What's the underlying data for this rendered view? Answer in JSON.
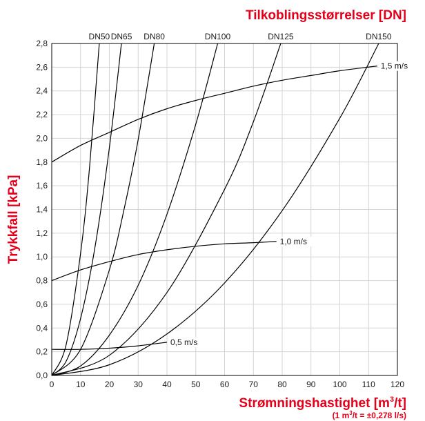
{
  "chart_data": {
    "type": "line",
    "title": "Tilkoblingsstørrelser [DN]",
    "xlabel_main": "Strømningshastighet [m",
    "xlabel_sup": "3",
    "xlabel_end": "/t]",
    "xnote_a": "(1 m",
    "xnote_sup": "3",
    "xnote_b": "/t = ±0,278 l/s)",
    "ylabel": "Trykkfall [kPa]",
    "xlim": [
      0,
      120
    ],
    "ylim": [
      0,
      2.8
    ],
    "xticks": [
      "0",
      "10",
      "20",
      "30",
      "40",
      "50",
      "60",
      "70",
      "80",
      "90",
      "100",
      "110",
      "120"
    ],
    "yticks": [
      "0,0",
      "0,2",
      "0,4",
      "0,6",
      "0,8",
      "1,0",
      "1,2",
      "1,4",
      "1,6",
      "1,8",
      "2,0",
      "2,2",
      "2,4",
      "2,6",
      "2,8"
    ],
    "grid": true,
    "dn_series": [
      {
        "name": "DN50",
        "x": [
          0,
          5,
          10,
          13.1,
          16.5
        ],
        "y": [
          0,
          0.26,
          1.03,
          1.75,
          2.8
        ]
      },
      {
        "name": "DN65",
        "x": [
          0,
          5,
          10,
          15,
          20,
          24.2
        ],
        "y": [
          0,
          0.12,
          0.48,
          1.08,
          1.92,
          2.8
        ]
      },
      {
        "name": "DN80",
        "x": [
          0,
          10,
          20,
          25,
          30,
          35.6
        ],
        "y": [
          0,
          0.22,
          0.89,
          1.39,
          1.99,
          2.8
        ]
      },
      {
        "name": "DN100",
        "x": [
          0,
          10,
          20,
          30,
          40,
          50,
          57.6
        ],
        "y": [
          0,
          0.08,
          0.34,
          0.76,
          1.36,
          2.12,
          2.8
        ]
      },
      {
        "name": "DN125",
        "x": [
          0,
          20,
          40,
          60,
          70,
          79.5
        ],
        "y": [
          0,
          0.17,
          0.7,
          1.57,
          2.14,
          2.8
        ]
      },
      {
        "name": "DN150",
        "x": [
          0,
          20,
          40,
          60,
          80,
          100,
          113.5
        ],
        "y": [
          0,
          0.09,
          0.35,
          0.78,
          1.39,
          2.17,
          2.8
        ]
      }
    ],
    "velocity_lines": [
      {
        "name": "1,5 m/s",
        "x": [
          0,
          10,
          20,
          30,
          40,
          50,
          60,
          70,
          80,
          90,
          100,
          113
        ],
        "y": [
          1.8,
          1.94,
          2.05,
          2.16,
          2.25,
          2.32,
          2.38,
          2.44,
          2.49,
          2.53,
          2.57,
          2.61
        ]
      },
      {
        "name": "1,0 m/s",
        "x": [
          0,
          10,
          20,
          30,
          40,
          50,
          60,
          70,
          78
        ],
        "y": [
          0.8,
          0.89,
          0.96,
          1.02,
          1.06,
          1.09,
          1.11,
          1.12,
          1.13
        ]
      },
      {
        "name": "0,5 m/s",
        "x": [
          0,
          10,
          20,
          30,
          40
        ],
        "y": [
          0.22,
          0.22,
          0.23,
          0.25,
          0.28
        ]
      }
    ]
  }
}
